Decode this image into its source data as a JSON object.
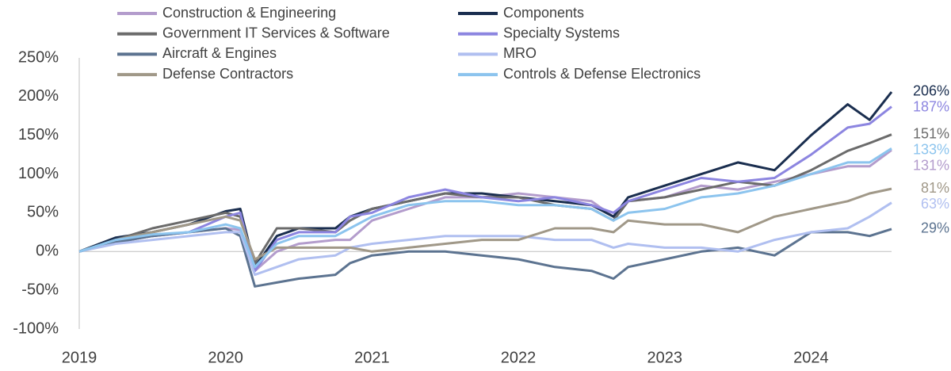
{
  "chart_data": {
    "type": "line",
    "x": [
      2019,
      2019.25,
      2019.5,
      2019.75,
      2020,
      2020.1,
      2020.2,
      2020.35,
      2020.5,
      2020.75,
      2020.85,
      2021,
      2021.25,
      2021.5,
      2021.75,
      2022,
      2022.25,
      2022.5,
      2022.65,
      2022.75,
      2023,
      2023.25,
      2023.5,
      2023.75,
      2024,
      2024.25,
      2024.4,
      2024.55
    ],
    "xlim": [
      2019,
      2024.55
    ],
    "xticks": [
      2019,
      2020,
      2021,
      2022,
      2023,
      2024
    ],
    "ylim": [
      -100,
      250
    ],
    "yticks": [
      {
        "value": -100,
        "label": "-100%"
      },
      {
        "value": -50,
        "label": "-50%"
      },
      {
        "value": 0,
        "label": "0%"
      },
      {
        "value": 50,
        "label": "50%"
      },
      {
        "value": 100,
        "label": "100%"
      },
      {
        "value": 150,
        "label": "150%"
      },
      {
        "value": 200,
        "label": "200%"
      },
      {
        "value": 250,
        "label": "250%"
      }
    ],
    "series": [
      {
        "name": "Construction & Engineering",
        "color": "#b39ccc",
        "end_label": "131%",
        "values": [
          0,
          12,
          20,
          25,
          30,
          28,
          -25,
          0,
          10,
          15,
          15,
          40,
          55,
          70,
          70,
          75,
          70,
          65,
          45,
          65,
          70,
          85,
          80,
          90,
          100,
          110,
          110,
          131
        ]
      },
      {
        "name": "Components",
        "color": "#1a2e4f",
        "end_label": "206%",
        "values": [
          0,
          18,
          25,
          35,
          52,
          55,
          -20,
          20,
          30,
          30,
          45,
          55,
          65,
          75,
          75,
          70,
          65,
          60,
          45,
          70,
          85,
          100,
          115,
          105,
          150,
          190,
          170,
          206
        ]
      },
      {
        "name": "Government IT Services & Software",
        "color": "#6b6b6b",
        "end_label": "151%",
        "values": [
          0,
          15,
          30,
          40,
          50,
          45,
          -15,
          30,
          30,
          25,
          40,
          55,
          65,
          75,
          70,
          70,
          60,
          55,
          40,
          65,
          70,
          80,
          90,
          85,
          105,
          130,
          140,
          151
        ]
      },
      {
        "name": "Specialty Systems",
        "color": "#8c85e0",
        "end_label": "187%",
        "values": [
          0,
          12,
          20,
          25,
          45,
          50,
          -25,
          15,
          25,
          25,
          45,
          50,
          70,
          80,
          70,
          65,
          70,
          60,
          50,
          65,
          80,
          95,
          90,
          95,
          125,
          160,
          165,
          187
        ]
      },
      {
        "name": "Aircraft & Engines",
        "color": "#5c7390",
        "end_label": "29%",
        "values": [
          0,
          12,
          20,
          25,
          30,
          20,
          -45,
          -40,
          -35,
          -30,
          -15,
          -5,
          0,
          0,
          -5,
          -10,
          -20,
          -25,
          -35,
          -20,
          -10,
          0,
          5,
          -5,
          25,
          25,
          20,
          29
        ]
      },
      {
        "name": "MRO",
        "color": "#b0bff0",
        "end_label": "63%",
        "values": [
          0,
          10,
          15,
          20,
          25,
          25,
          -30,
          -20,
          -10,
          -5,
          5,
          10,
          15,
          20,
          20,
          20,
          15,
          15,
          5,
          10,
          5,
          5,
          0,
          15,
          25,
          30,
          45,
          63
        ]
      },
      {
        "name": "Defense Contractors",
        "color": "#a09888",
        "end_label": "81%",
        "values": [
          0,
          15,
          25,
          35,
          45,
          40,
          -10,
          5,
          5,
          5,
          5,
          0,
          5,
          10,
          15,
          15,
          30,
          30,
          25,
          40,
          35,
          35,
          25,
          45,
          55,
          65,
          75,
          81
        ]
      },
      {
        "name": "Controls & Defense Electronics",
        "color": "#8cc4ee",
        "end_label": "133%",
        "values": [
          0,
          15,
          22,
          25,
          35,
          30,
          -20,
          10,
          20,
          20,
          30,
          45,
          60,
          65,
          65,
          60,
          60,
          55,
          40,
          50,
          55,
          70,
          75,
          85,
          100,
          115,
          115,
          133
        ]
      }
    ]
  }
}
